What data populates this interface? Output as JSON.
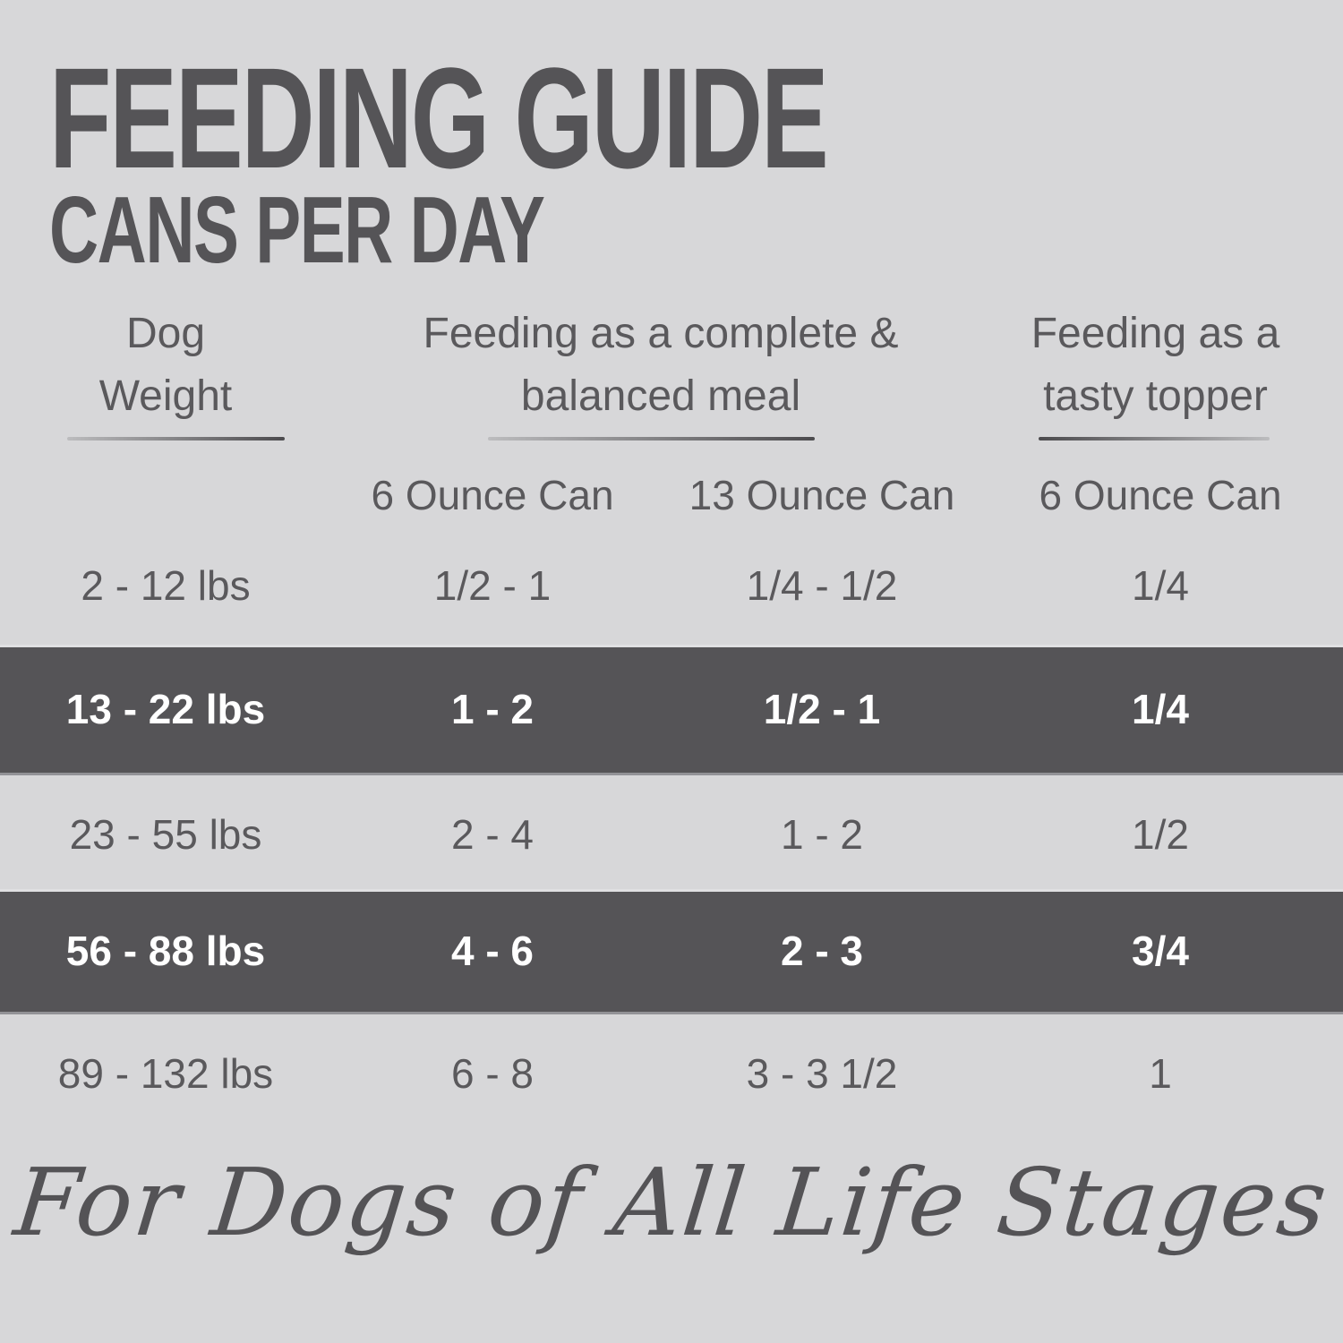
{
  "title": "FEEDING GUIDE",
  "subtitle": "CANS PER DAY",
  "colors": {
    "background": "#d7d7d9",
    "highlight_band": "#555457",
    "text_dark": "#565559",
    "text_on_band": "#ffffff"
  },
  "header": {
    "dog_weight": {
      "line1": "Dog",
      "line2": "Weight"
    },
    "complete_meal": {
      "line1": "Feeding as a complete &",
      "line2": "balanced meal"
    },
    "tasty_topper": {
      "line1": "Feeding as a",
      "line2": "tasty topper"
    }
  },
  "sub_headers": {
    "complete_6oz": "6 Ounce Can",
    "complete_13oz": "13 Ounce Can",
    "topper_6oz": "6 Ounce Can"
  },
  "table": {
    "rows": [
      {
        "weight": "2 - 12 lbs",
        "complete_6oz": "1/2 - 1",
        "complete_13oz": "1/4 - 1/2",
        "topper_6oz": "1/4",
        "highlighted": false
      },
      {
        "weight": "13 - 22 lbs",
        "complete_6oz": "1 - 2",
        "complete_13oz": "1/2 - 1",
        "topper_6oz": "1/4",
        "highlighted": true
      },
      {
        "weight": "23 - 55 lbs",
        "complete_6oz": "2 - 4",
        "complete_13oz": "1 - 2",
        "topper_6oz": "1/2",
        "highlighted": false
      },
      {
        "weight": "56 - 88 lbs",
        "complete_6oz": "4 - 6",
        "complete_13oz": "2 - 3",
        "topper_6oz": "3/4",
        "highlighted": true
      },
      {
        "weight": "89 - 132 lbs",
        "complete_6oz": "6 - 8",
        "complete_13oz": "3 - 3 1/2",
        "topper_6oz": "1",
        "highlighted": false
      }
    ]
  },
  "footer": {
    "tagline": "For Dogs of All Life Stages"
  },
  "chart_data": {
    "type": "table",
    "title": "FEEDING GUIDE",
    "subtitle": "CANS PER DAY",
    "column_groups": [
      {
        "label": "Dog Weight",
        "columns": []
      },
      {
        "label": "Feeding as a complete & balanced meal",
        "columns": [
          "6 Ounce Can",
          "13 Ounce Can"
        ]
      },
      {
        "label": "Feeding as a tasty topper",
        "columns": [
          "6 Ounce Can"
        ]
      }
    ],
    "columns": [
      "Dog Weight",
      "Complete meal - 6 Ounce Can",
      "Complete meal - 13 Ounce Can",
      "Tasty topper - 6 Ounce Can"
    ],
    "rows": [
      [
        "2 - 12 lbs",
        "1/2 - 1",
        "1/4 - 1/2",
        "1/4"
      ],
      [
        "13 - 22 lbs",
        "1 - 2",
        "1/2 - 1",
        "1/4"
      ],
      [
        "23 - 55 lbs",
        "2 - 4",
        "1 - 2",
        "1/2"
      ],
      [
        "56 - 88 lbs",
        "4 - 6",
        "2 - 3",
        "3/4"
      ],
      [
        "89 - 132 lbs",
        "6 - 8",
        "3 - 3 1/2",
        "1"
      ]
    ],
    "highlighted_row_indices": [
      1,
      3
    ],
    "annotation": "For Dogs of All Life Stages"
  }
}
